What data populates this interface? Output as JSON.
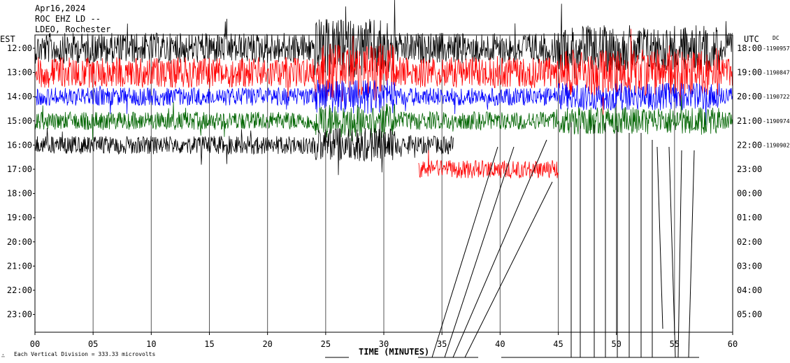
{
  "header": {
    "date": "Apr16,2024",
    "station": "ROC EHZ LD --",
    "network": "LDEO, Rochester"
  },
  "left_axis_title": "EST",
  "right_axis_title": "UTC",
  "dc_label": "DC",
  "footer_note": "Each Vertical Division =  333.33 microvolts",
  "chart_data": {
    "type": "line",
    "title": "",
    "xlabel": "TIME (MINUTES)",
    "xlim": [
      0,
      60
    ],
    "x_ticks": [
      "00",
      "05",
      "10",
      "15",
      "20",
      "25",
      "30",
      "35",
      "40",
      "45",
      "50",
      "55",
      "60"
    ],
    "y_ticks_est": [
      "12:00",
      "13:00",
      "14:00",
      "15:00",
      "16:00",
      "17:00",
      "18:00",
      "19:00",
      "20:00",
      "21:00",
      "22:00",
      "23:00"
    ],
    "y_ticks_utc": [
      "18:00",
      "19:00",
      "20:00",
      "21:00",
      "22:00",
      "23:00",
      "00:00",
      "01:00",
      "02:00",
      "03:00",
      "04:00",
      "05:00"
    ],
    "dc_offsets": [
      "-1190957",
      "-1190847",
      "-1190722",
      "-1190974",
      "-1190902"
    ],
    "series": [
      {
        "hour_est": "12:00",
        "color": "#000000",
        "start_min": 0,
        "end_min": 60,
        "amplitude": "high"
      },
      {
        "hour_est": "13:00",
        "color": "#ff0000",
        "start_min": 0,
        "end_min": 60,
        "amplitude": "high"
      },
      {
        "hour_est": "14:00",
        "color": "#0000ff",
        "start_min": 0,
        "end_min": 60,
        "amplitude": "medium"
      },
      {
        "hour_est": "15:00",
        "color": "#006400",
        "start_min": 0,
        "end_min": 60,
        "amplitude": "medium"
      },
      {
        "hour_est": "16:00",
        "color": "#000000",
        "start_min": 0,
        "end_min": 36,
        "amplitude": "medium"
      },
      {
        "hour_est": "17:00",
        "color": "#ff0000",
        "start_min": 33,
        "end_min": 45,
        "amplitude": "medium"
      }
    ],
    "grid": true
  }
}
